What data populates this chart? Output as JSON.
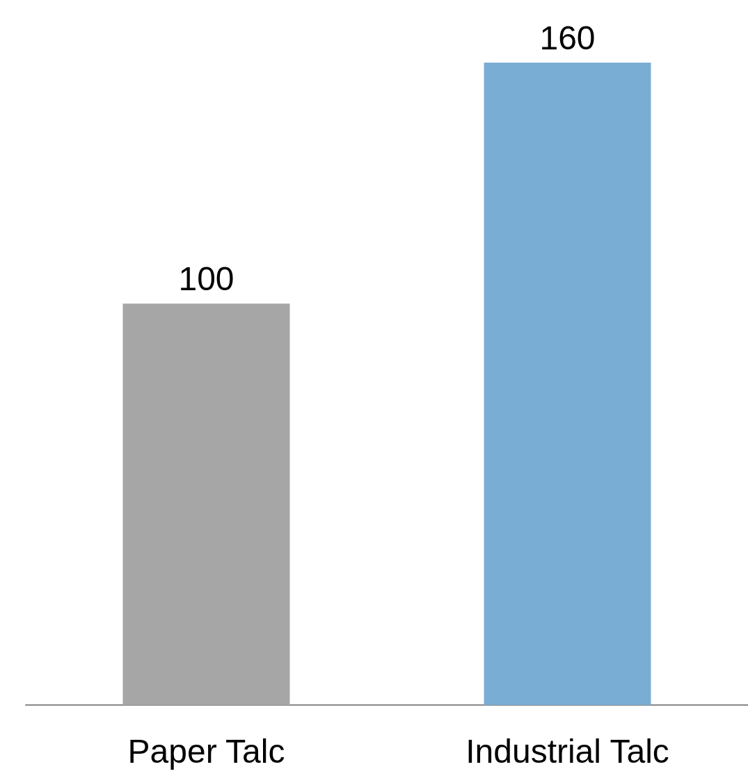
{
  "chart_data": {
    "type": "bar",
    "categories": [
      "Paper Talc",
      "Industrial Talc"
    ],
    "values": [
      100,
      160
    ],
    "colors": [
      "#a6a6a6",
      "#7aadd4"
    ],
    "tick_labels": "x",
    "data_labels": true
  }
}
